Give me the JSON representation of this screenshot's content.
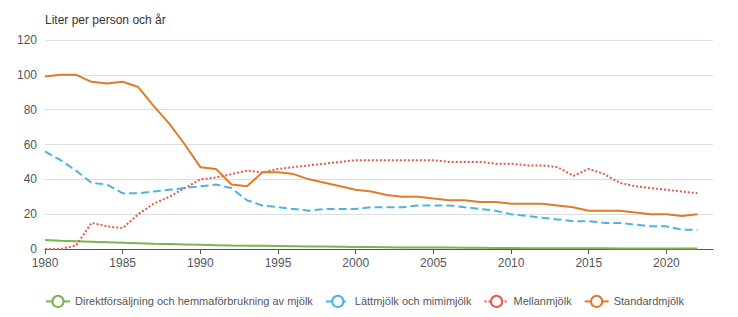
{
  "chart_data": {
    "type": "line",
    "ylabel": "Liter per person och år",
    "x": [
      1980,
      1981,
      1982,
      1983,
      1984,
      1985,
      1986,
      1987,
      1988,
      1989,
      1990,
      1991,
      1992,
      1993,
      1994,
      1995,
      1996,
      1997,
      1998,
      1999,
      2000,
      2001,
      2002,
      2003,
      2004,
      2005,
      2006,
      2007,
      2008,
      2009,
      2010,
      2011,
      2012,
      2013,
      2014,
      2015,
      2016,
      2017,
      2018,
      2019,
      2020,
      2021,
      2022
    ],
    "series": [
      {
        "name": "Direktförsäljning och hemmaförbrukning av mjölk",
        "color": "#7ab648",
        "line_style": "solid",
        "values": [
          5.2,
          4.8,
          4.5,
          4.2,
          3.9,
          3.6,
          3.3,
          3.0,
          2.8,
          2.6,
          2.4,
          2.2,
          2.0,
          1.9,
          1.8,
          1.7,
          1.6,
          1.5,
          1.4,
          1.3,
          1.2,
          1.1,
          1.0,
          0.9,
          0.9,
          0.8,
          0.8,
          0.7,
          0.7,
          0.6,
          0.6,
          0.5,
          0.5,
          0.5,
          0.4,
          0.4,
          0.4,
          0.3,
          0.3,
          0.3,
          0.3,
          0.3,
          0.3
        ]
      },
      {
        "name": "Lättmjölk och mimimjölk",
        "color": "#4db3e6",
        "line_style": "dashed",
        "values": [
          56,
          51,
          45,
          38,
          37,
          32,
          32,
          33,
          34,
          35,
          36,
          37,
          35,
          28,
          25,
          24,
          23,
          22,
          23,
          23,
          23,
          24,
          24,
          24,
          25,
          25,
          25,
          24,
          23,
          22,
          20,
          19,
          18,
          17,
          16,
          16,
          15,
          15,
          14,
          13,
          13,
          11,
          11
        ]
      },
      {
        "name": "Mellanmjölk",
        "color": "#e8574a",
        "line_style": "dotted",
        "values": [
          0,
          0,
          2,
          15,
          13,
          12,
          20,
          26,
          30,
          35,
          40,
          41,
          43,
          45,
          44,
          46,
          47,
          48,
          49,
          50,
          51,
          51,
          51,
          51,
          51,
          51,
          50,
          50,
          50,
          49,
          49,
          48,
          48,
          47,
          42,
          46,
          43,
          38,
          36,
          35,
          34,
          33,
          32
        ]
      },
      {
        "name": "Standardmjölk",
        "color": "#e07b2a",
        "line_style": "solid",
        "values": [
          99,
          100,
          100,
          96,
          95,
          96,
          93,
          82,
          72,
          60,
          47,
          46,
          37,
          36,
          44,
          44,
          43,
          40,
          38,
          36,
          34,
          33,
          31,
          30,
          30,
          29,
          28,
          28,
          27,
          27,
          26,
          26,
          26,
          25,
          24,
          22,
          22,
          22,
          21,
          20,
          20,
          19,
          20
        ]
      }
    ],
    "xlim": [
      1980,
      2023
    ],
    "xticks": [
      1980,
      1985,
      1990,
      1995,
      2000,
      2005,
      2010,
      2015,
      2020
    ],
    "ylim": [
      0,
      120
    ],
    "yticks": [
      0,
      20,
      40,
      60,
      80,
      100,
      120
    ],
    "grid": true,
    "legend": "lower left"
  }
}
